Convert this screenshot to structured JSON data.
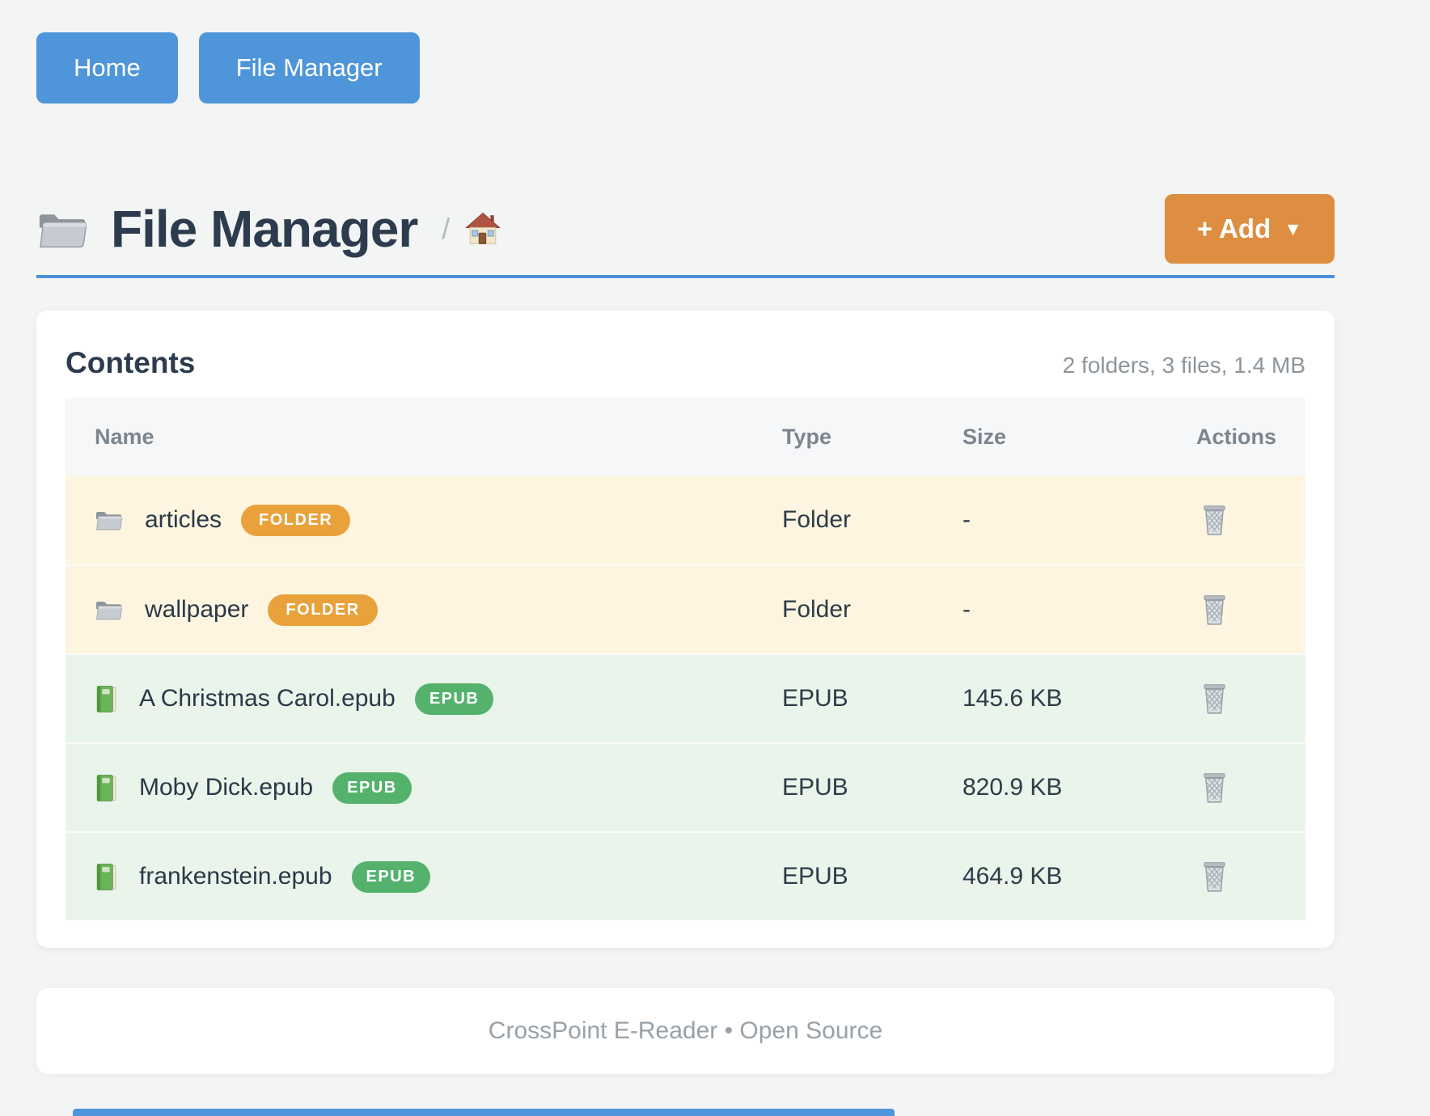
{
  "nav": {
    "buttons": [
      {
        "label": "Home"
      },
      {
        "label": "File Manager"
      }
    ]
  },
  "header": {
    "title": "File Manager",
    "breadcrumb_separator": "/",
    "add_button_label": "+ Add",
    "add_caret": "▼"
  },
  "panel": {
    "title": "Contents",
    "summary": "2 folders, 3 files, 1.4 MB",
    "table": {
      "columns": [
        "Name",
        "Type",
        "Size",
        "Actions"
      ],
      "rows": [
        {
          "name": "articles",
          "badge": "FOLDER",
          "kind": "folder",
          "type": "Folder",
          "size": "-"
        },
        {
          "name": "wallpaper",
          "badge": "FOLDER",
          "kind": "folder",
          "type": "Folder",
          "size": "-"
        },
        {
          "name": "A Christmas Carol.epub",
          "badge": "EPUB",
          "kind": "epub",
          "type": "EPUB",
          "size": "145.6 KB"
        },
        {
          "name": "Moby Dick.epub",
          "badge": "EPUB",
          "kind": "epub",
          "type": "EPUB",
          "size": "820.9 KB"
        },
        {
          "name": "frankenstein.epub",
          "badge": "EPUB",
          "kind": "epub",
          "type": "EPUB",
          "size": "464.9 KB"
        }
      ]
    }
  },
  "footer": {
    "text": "CrossPoint E-Reader • Open Source"
  },
  "icons": {
    "page_title": "folder-icon",
    "breadcrumb_root": "house-icon",
    "folder_row": "folder-icon",
    "epub_row": "book-icon",
    "delete": "trash-icon",
    "add_caret": "caret-down-icon"
  },
  "colors": {
    "accent_blue": "#4e95d9",
    "divider_blue": "#4a90d8",
    "add_orange": "#dd8e41",
    "folder_badge": "#e9a23b",
    "epub_badge": "#54b26d",
    "folder_row_bg": "#fdf5df",
    "epub_row_bg": "#e9f4ea",
    "title_text": "#2d3b4e",
    "muted_text": "#8d959b"
  }
}
